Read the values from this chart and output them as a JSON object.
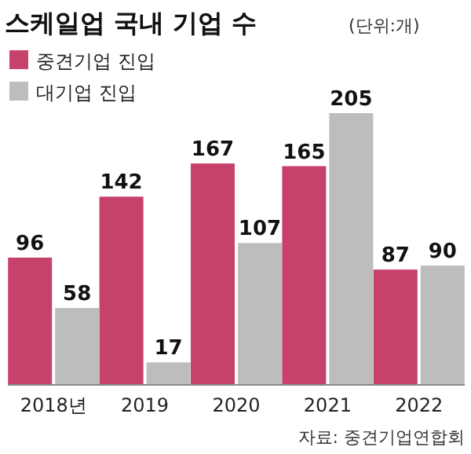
{
  "chart_data": {
    "type": "bar",
    "title": "스케일업 국내 기업 수",
    "subtitle": "(단위:개)",
    "categories": [
      "2018년",
      "2019",
      "2020",
      "2021",
      "2022"
    ],
    "series": [
      {
        "name": "중견기업 진입",
        "color": "#c7426b",
        "values": [
          96,
          142,
          167,
          165,
          87
        ]
      },
      {
        "name": "대기업 진입",
        "color": "#bdbdbd",
        "values": [
          58,
          17,
          107,
          205,
          90
        ]
      }
    ],
    "data_labels": true,
    "legend": "top left",
    "annotations": [
      "자료: 중견기업연합회"
    ]
  }
}
